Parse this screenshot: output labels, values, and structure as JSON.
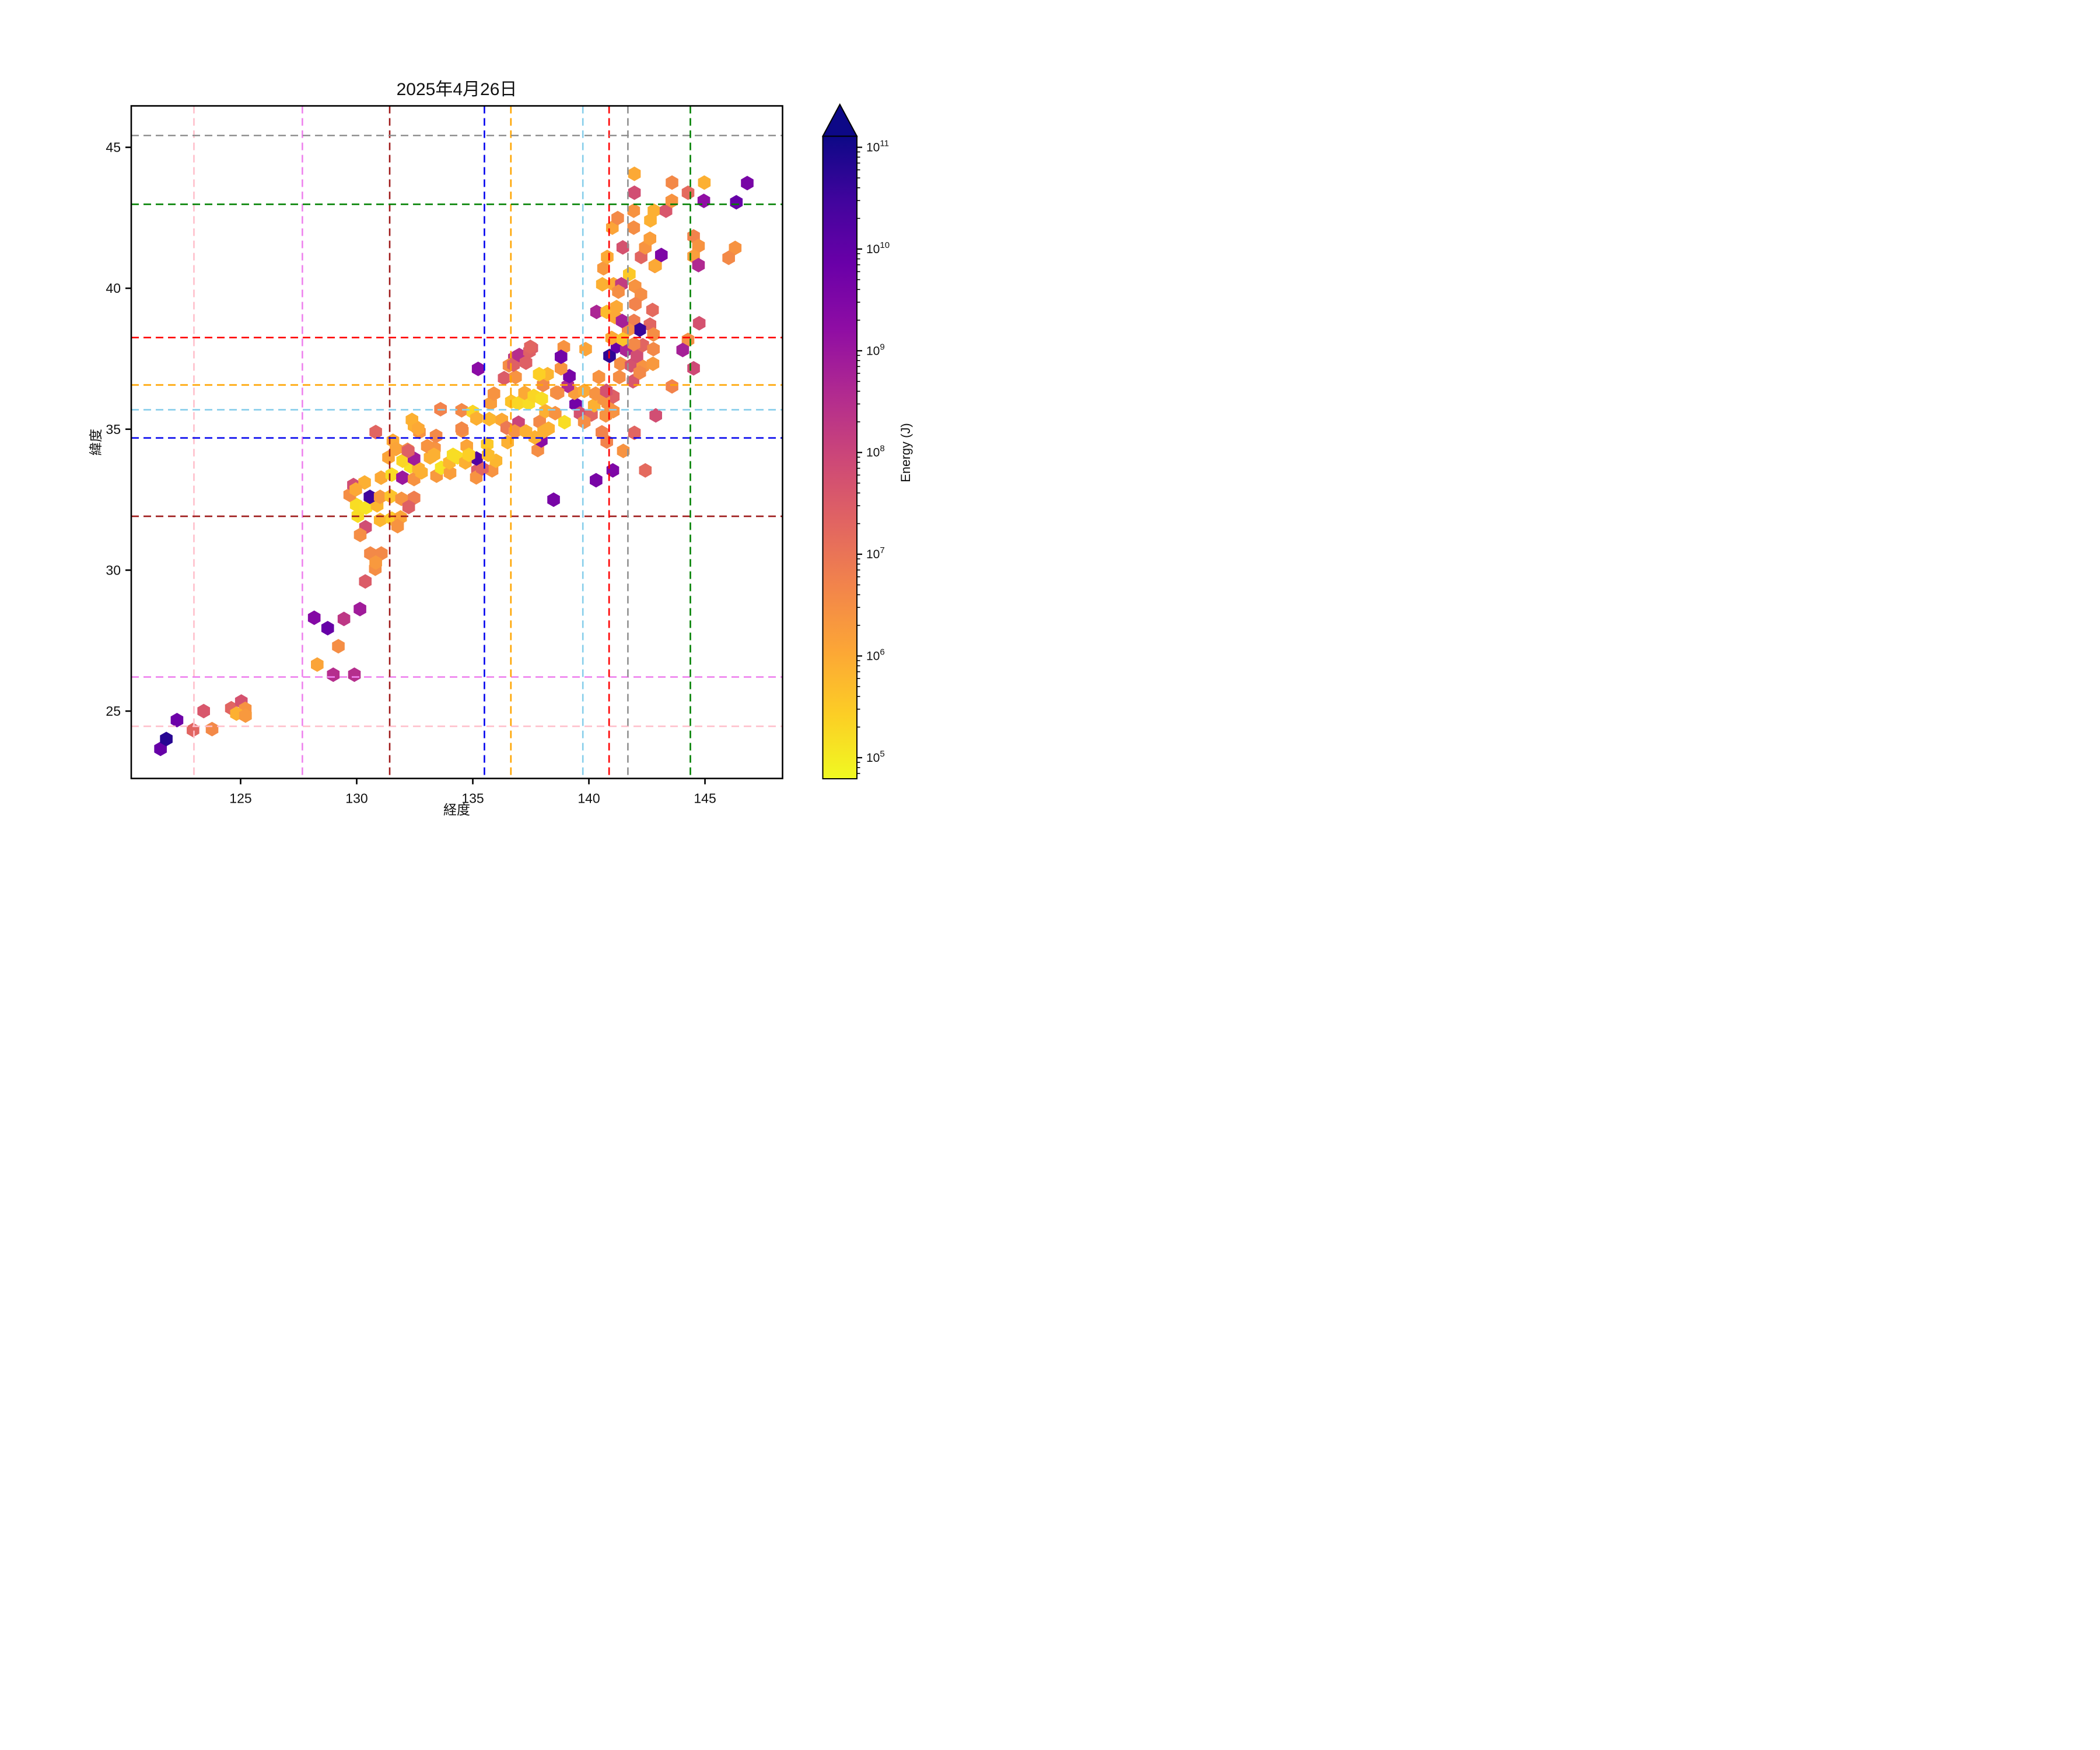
{
  "title": "2025年4月26日",
  "axes": {
    "xlabel": "経度",
    "ylabel": "緯度",
    "xticks": [
      125,
      130,
      135,
      140,
      145
    ],
    "yticks": [
      25,
      30,
      35,
      40,
      45
    ],
    "xlim": [
      120.29,
      148.34
    ],
    "ylim": [
      22.61,
      46.47
    ]
  },
  "colorbar": {
    "label": "Energy (J)",
    "tick_exponents": [
      5,
      6,
      7,
      8,
      9,
      10,
      11
    ],
    "log_min": 4.79,
    "log_max": 11.11,
    "colormap": "plasma_r",
    "extend": "max"
  },
  "plasma_stops": [
    "#0d0887",
    "#41049d",
    "#6a00a8",
    "#8f0da4",
    "#b12a90",
    "#cc4778",
    "#e16462",
    "#f2844b",
    "#fca636",
    "#fcce25",
    "#f0f921"
  ],
  "chart_data": {
    "type": "hexbin",
    "title": "2025年4月26日",
    "xlabel": "経度",
    "ylabel": "緯度",
    "xlim": [
      120.29,
      148.34
    ],
    "ylim": [
      22.61,
      46.47
    ],
    "grid": false,
    "value_label": "Energy (J)",
    "value_scale": "log10",
    "hex_width_deg": 0.54,
    "reference_lines": [
      {
        "name": "pink",
        "color": "#ffc0cb",
        "lon": 122.99,
        "lat": 24.46
      },
      {
        "name": "violet",
        "color": "#ee82ee",
        "lon": 127.66,
        "lat": 26.21
      },
      {
        "name": "darkred",
        "color": "#9e1a1a",
        "lon": 131.42,
        "lat": 31.91
      },
      {
        "name": "blue",
        "color": "#0000ee",
        "lon": 135.5,
        "lat": 34.69
      },
      {
        "name": "orange",
        "color": "#ffa500",
        "lon": 136.64,
        "lat": 36.57
      },
      {
        "name": "skyblue",
        "color": "#87ceeb",
        "lon": 139.74,
        "lat": 35.69
      },
      {
        "name": "red",
        "color": "#ff0000",
        "lon": 140.87,
        "lat": 38.25
      },
      {
        "name": "gray",
        "color": "#909090",
        "lon": 141.68,
        "lat": 45.42
      },
      {
        "name": "green",
        "color": "#008000",
        "lon": 144.37,
        "lat": 42.98
      }
    ],
    "points": [
      [
        121.55,
        23.66,
        9.9
      ],
      [
        121.8,
        24.01,
        10.8
      ],
      [
        122.26,
        24.68,
        9.8
      ],
      [
        122.95,
        24.33,
        7.3
      ],
      [
        123.41,
        25.0,
        7.6
      ],
      [
        123.77,
        24.36,
        6.6
      ],
      [
        124.6,
        25.1,
        7.3
      ],
      [
        125.03,
        25.34,
        7.7
      ],
      [
        125.2,
        25.08,
        6.4
      ],
      [
        124.82,
        24.91,
        5.9
      ],
      [
        125.21,
        24.84,
        6.3
      ],
      [
        128.17,
        28.31,
        9.4
      ],
      [
        128.75,
        27.94,
        9.9
      ],
      [
        129.45,
        28.27,
        8.3
      ],
      [
        130.14,
        28.62,
        8.9
      ],
      [
        130.37,
        29.6,
        7.5
      ],
      [
        129.21,
        27.3,
        6.5
      ],
      [
        128.3,
        26.65,
        6.1
      ],
      [
        128.99,
        26.29,
        8.5
      ],
      [
        129.9,
        26.29,
        8.5
      ],
      [
        130.8,
        30.05,
        6.5
      ],
      [
        130.59,
        30.59,
        6.6
      ],
      [
        131.06,
        30.59,
        6.6
      ],
      [
        130.82,
        30.27,
        6.3
      ],
      [
        130.38,
        31.52,
        7.8
      ],
      [
        130.15,
        31.25,
        6.5
      ],
      [
        130.05,
        31.93,
        5.2
      ],
      [
        131.01,
        31.78,
        5.8
      ],
      [
        131.51,
        31.83,
        5.5
      ],
      [
        131.89,
        31.87,
        6.1
      ],
      [
        131.76,
        31.56,
        6.4
      ],
      [
        129.98,
        32.32,
        5.2
      ],
      [
        130.4,
        32.22,
        5.1
      ],
      [
        130.88,
        32.3,
        5.8
      ],
      [
        129.7,
        32.67,
        6.5
      ],
      [
        130.57,
        32.6,
        10.5
      ],
      [
        131.01,
        32.6,
        6.3
      ],
      [
        131.47,
        32.62,
        5.6
      ],
      [
        131.93,
        32.53,
        6.4
      ],
      [
        132.47,
        32.56,
        6.8
      ],
      [
        132.24,
        32.24,
        7.4
      ],
      [
        129.86,
        33.02,
        7.8
      ],
      [
        130.34,
        33.11,
        5.9
      ],
      [
        129.96,
        32.86,
        6.0
      ],
      [
        131.05,
        33.28,
        6.0
      ],
      [
        131.51,
        33.39,
        5.2
      ],
      [
        131.97,
        33.28,
        9.0
      ],
      [
        132.47,
        33.23,
        6.4
      ],
      [
        132.79,
        33.47,
        5.9
      ],
      [
        133.44,
        33.35,
        6.3
      ],
      [
        133.64,
        33.63,
        5.1
      ],
      [
        134.02,
        33.45,
        6.2
      ],
      [
        132.31,
        33.68,
        5.1
      ],
      [
        132.66,
        33.61,
        5.9
      ],
      [
        135.2,
        33.54,
        7.4
      ],
      [
        135.15,
        33.29,
        6.4
      ],
      [
        135.83,
        33.54,
        6.4
      ],
      [
        135.41,
        33.61,
        7.3
      ],
      [
        135.16,
        33.96,
        10.2
      ],
      [
        136.0,
        33.88,
        5.8
      ],
      [
        130.82,
        34.9,
        7.3
      ],
      [
        131.37,
        34.0,
        6.1
      ],
      [
        131.56,
        34.59,
        6.0
      ],
      [
        131.69,
        34.3,
        6.1
      ],
      [
        131.98,
        33.88,
        5.3
      ],
      [
        132.19,
        34.27,
        6.6
      ],
      [
        132.47,
        33.96,
        8.9
      ],
      [
        132.22,
        34.23,
        7.4
      ],
      [
        132.47,
        35.12,
        5.9
      ],
      [
        132.7,
        34.9,
        6.4
      ],
      [
        132.38,
        35.33,
        5.9
      ],
      [
        132.65,
        35.02,
        6.0
      ],
      [
        133.16,
        34.0,
        5.9
      ],
      [
        133.35,
        34.33,
        6.4
      ],
      [
        133.42,
        34.76,
        6.6
      ],
      [
        133.04,
        34.4,
        6.4
      ],
      [
        133.61,
        35.71,
        6.7
      ],
      [
        134.52,
        35.67,
        6.6
      ],
      [
        133.99,
        33.82,
        5.8
      ],
      [
        134.34,
        34.0,
        5.2
      ],
      [
        134.68,
        33.82,
        5.9
      ],
      [
        133.33,
        34.09,
        5.9
      ],
      [
        134.15,
        34.09,
        5.2
      ],
      [
        134.74,
        34.4,
        6.1
      ],
      [
        134.83,
        34.09,
        5.4
      ],
      [
        134.55,
        34.94,
        6.4
      ],
      [
        135.0,
        35.61,
        5.3
      ],
      [
        135.16,
        35.38,
        5.9
      ],
      [
        135.62,
        34.47,
        5.5
      ],
      [
        135.66,
        34.09,
        5.7
      ],
      [
        134.52,
        35.02,
        6.6
      ],
      [
        135.71,
        35.36,
        5.8
      ],
      [
        135.77,
        35.92,
        6.2
      ],
      [
        135.91,
        36.26,
        6.4
      ],
      [
        136.25,
        35.33,
        6.0
      ],
      [
        136.46,
        35.05,
        6.9
      ],
      [
        136.5,
        34.54,
        5.9
      ],
      [
        136.97,
        35.23,
        8.0
      ],
      [
        136.66,
        35.98,
        5.6
      ],
      [
        136.96,
        35.92,
        5.3
      ],
      [
        137.41,
        35.92,
        5.2
      ],
      [
        137.23,
        36.29,
        6.0
      ],
      [
        137.63,
        36.18,
        5.3
      ],
      [
        137.97,
        36.08,
        5.2
      ],
      [
        137.8,
        34.26,
        6.5
      ],
      [
        137.88,
        35.26,
        6.6
      ],
      [
        137.95,
        34.6,
        9.3
      ],
      [
        138.05,
        34.92,
        5.9
      ],
      [
        138.26,
        35.02,
        5.9
      ],
      [
        138.13,
        35.64,
        5.9
      ],
      [
        138.55,
        35.57,
        6.4
      ],
      [
        138.95,
        35.25,
        5.2
      ],
      [
        139.43,
        35.88,
        9.7
      ],
      [
        136.81,
        34.92,
        6.4
      ],
      [
        137.29,
        34.92,
        5.9
      ],
      [
        137.67,
        34.71,
        5.9
      ],
      [
        138.48,
        32.5,
        9.6
      ],
      [
        140.31,
        33.19,
        9.6
      ],
      [
        141.03,
        33.54,
        9.5
      ],
      [
        142.43,
        33.54,
        7.2
      ],
      [
        139.62,
        35.56,
        7.7
      ],
      [
        140.11,
        35.52,
        7.3
      ],
      [
        139.8,
        35.26,
        6.5
      ],
      [
        140.23,
        35.85,
        5.9
      ],
      [
        140.73,
        35.49,
        6.4
      ],
      [
        141.05,
        35.64,
        6.4
      ],
      [
        140.81,
        35.92,
        6.4
      ],
      [
        141.05,
        36.16,
        7.4
      ],
      [
        140.56,
        34.89,
        6.7
      ],
      [
        140.77,
        34.56,
        6.7
      ],
      [
        141.48,
        34.23,
        6.4
      ],
      [
        141.96,
        34.87,
        7.3
      ],
      [
        142.88,
        35.49,
        7.8
      ],
      [
        138.6,
        36.3,
        6.4
      ],
      [
        139.38,
        36.29,
        6.2
      ],
      [
        139.8,
        36.36,
        6.0
      ],
      [
        140.29,
        36.26,
        6.4
      ],
      [
        140.64,
        36.06,
        6.4
      ],
      [
        140.75,
        36.36,
        7.7
      ],
      [
        139.09,
        36.54,
        8.6
      ],
      [
        139.16,
        36.88,
        9.6
      ],
      [
        140.43,
        36.85,
        6.4
      ],
      [
        141.31,
        36.85,
        6.5
      ],
      [
        141.9,
        36.7,
        7.6
      ],
      [
        143.58,
        36.52,
        6.7
      ],
      [
        138.03,
        36.57,
        6.6
      ],
      [
        138.22,
        36.95,
        5.8
      ],
      [
        137.86,
        36.95,
        5.4
      ],
      [
        138.67,
        36.29,
        6.5
      ],
      [
        138.8,
        37.16,
        6.4
      ],
      [
        138.92,
        37.91,
        6.4
      ],
      [
        138.8,
        37.57,
        9.7
      ],
      [
        139.86,
        37.84,
        6.1
      ],
      [
        136.79,
        37.53,
        8.2
      ],
      [
        136.35,
        36.81,
        7.5
      ],
      [
        136.56,
        37.26,
        6.5
      ],
      [
        136.84,
        36.85,
        6.4
      ],
      [
        136.75,
        37.29,
        7.4
      ],
      [
        137.0,
        37.63,
        8.5
      ],
      [
        137.29,
        37.36,
        7.4
      ],
      [
        137.54,
        37.88,
        7.5
      ],
      [
        137.44,
        37.76,
        7.4
      ],
      [
        137.48,
        37.92,
        7.3
      ],
      [
        135.23,
        37.14,
        9.3
      ],
      [
        140.89,
        37.6,
        10.7
      ],
      [
        141.21,
        37.94,
        9.9
      ],
      [
        141.61,
        37.81,
        8.7
      ],
      [
        141.36,
        37.32,
        6.5
      ],
      [
        141.82,
        37.26,
        7.7
      ],
      [
        142.32,
        37.22,
        6.4
      ],
      [
        142.76,
        37.32,
        6.3
      ],
      [
        142.07,
        37.6,
        7.8
      ],
      [
        142.19,
        37.01,
        6.6
      ],
      [
        142.32,
        37.98,
        7.3
      ],
      [
        142.78,
        37.84,
        6.6
      ],
      [
        141.94,
        38.02,
        6.6
      ],
      [
        141.94,
        38.84,
        6.8
      ],
      [
        142.63,
        38.71,
        7.3
      ],
      [
        142.19,
        38.53,
        10.6
      ],
      [
        141.69,
        38.53,
        6.5
      ],
      [
        142.78,
        38.36,
        6.5
      ],
      [
        140.98,
        38.24,
        6.0
      ],
      [
        141.46,
        38.19,
        5.6
      ],
      [
        140.33,
        39.16,
        8.7
      ],
      [
        140.77,
        39.16,
        5.7
      ],
      [
        141.19,
        39.33,
        6.0
      ],
      [
        141.12,
        38.98,
        6.0
      ],
      [
        141.43,
        38.84,
        8.8
      ],
      [
        144.27,
        38.17,
        6.5
      ],
      [
        144.04,
        37.81,
        8.8
      ],
      [
        144.51,
        37.16,
        7.9
      ],
      [
        144.75,
        38.76,
        7.7
      ],
      [
        140.58,
        40.14,
        5.9
      ],
      [
        141.06,
        40.14,
        6.0
      ],
      [
        141.4,
        40.14,
        8.2
      ],
      [
        141.74,
        40.5,
        5.5
      ],
      [
        141.99,
        40.07,
        6.4
      ],
      [
        141.27,
        39.88,
        6.5
      ],
      [
        142.24,
        39.78,
        6.5
      ],
      [
        142.0,
        39.44,
        6.7
      ],
      [
        142.74,
        39.23,
        7.2
      ],
      [
        140.63,
        40.71,
        6.3
      ],
      [
        142.84,
        40.79,
        6.4
      ],
      [
        140.79,
        41.11,
        6.0
      ],
      [
        141.46,
        41.45,
        7.7
      ],
      [
        141.93,
        42.15,
        6.5
      ],
      [
        141.01,
        42.15,
        6.1
      ],
      [
        141.24,
        42.49,
        6.6
      ],
      [
        141.93,
        42.75,
        6.4
      ],
      [
        142.25,
        41.11,
        7.3
      ],
      [
        142.43,
        41.45,
        6.4
      ],
      [
        142.63,
        41.76,
        6.2
      ],
      [
        142.87,
        40.8,
        6.0
      ],
      [
        143.12,
        41.18,
        9.5
      ],
      [
        142.65,
        42.41,
        5.9
      ],
      [
        142.8,
        42.75,
        5.9
      ],
      [
        143.32,
        42.75,
        7.6
      ],
      [
        143.57,
        43.1,
        6.4
      ],
      [
        141.96,
        43.39,
        7.8
      ],
      [
        141.96,
        44.06,
        6.0
      ],
      [
        143.58,
        43.75,
        6.6
      ],
      [
        144.27,
        43.39,
        7.2
      ],
      [
        144.97,
        43.75,
        5.9
      ],
      [
        144.95,
        43.1,
        9.2
      ],
      [
        146.35,
        43.05,
        9.9
      ],
      [
        146.82,
        43.73,
        9.6
      ],
      [
        144.51,
        41.84,
        6.7
      ],
      [
        144.72,
        41.5,
        6.4
      ],
      [
        144.51,
        41.13,
        6.2
      ],
      [
        144.72,
        40.82,
        8.6
      ],
      [
        146.3,
        41.43,
        6.4
      ],
      [
        146.02,
        41.08,
        6.6
      ]
    ]
  }
}
